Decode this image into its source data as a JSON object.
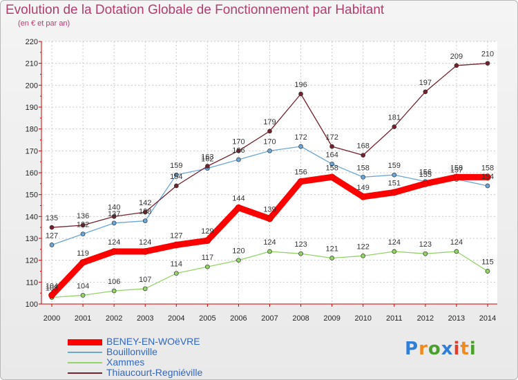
{
  "title": "Evolution de la Dotation Globale de Fonctionnement par Habitant",
  "subtitle": "(en € et par an)",
  "logo": {
    "text": "Proxiti",
    "colors": [
      "#2f7fd8",
      "#f08a1c",
      "#4aa02c",
      "#2f7fd8",
      "#e33b2c",
      "#f08a1c",
      "#4aa02c"
    ]
  },
  "chart_data": {
    "type": "line",
    "title": "Evolution de la Dotation Globale de Fonctionnement par Habitant",
    "subtitle": "(en € et par an)",
    "x": [
      "2000",
      "2001",
      "2002",
      "2003",
      "2004",
      "2005",
      "2006",
      "2007",
      "2008",
      "2009",
      "2010",
      "2011",
      "2012",
      "2013",
      "2014"
    ],
    "ylim": [
      100,
      220
    ],
    "yticks": [
      100,
      110,
      120,
      130,
      140,
      150,
      160,
      170,
      180,
      190,
      200,
      210,
      220
    ],
    "grid": true,
    "legend_position": "bottom-left",
    "series": [
      {
        "name": "BENEY-EN-WOëVRE",
        "color": "#ff0000",
        "width": 9,
        "values": [
          104,
          119,
          124,
          124,
          127,
          129,
          144,
          139,
          156,
          158,
          149,
          151,
          155,
          158,
          158
        ]
      },
      {
        "name": "Bouillonville",
        "color": "#6aa6d6",
        "width": 1.3,
        "values": [
          127,
          132,
          137,
          138,
          159,
          162,
          166,
          170,
          172,
          164,
          158,
          159,
          156,
          157,
          154
        ]
      },
      {
        "name": "Xammes",
        "color": "#93d466",
        "width": 1.3,
        "values": [
          103,
          104,
          106,
          107,
          114,
          117,
          120,
          124,
          123,
          121,
          122,
          124,
          123,
          124,
          115
        ]
      },
      {
        "name": "Thiaucourt-Regniéville",
        "color": "#74212b",
        "width": 1.3,
        "values": [
          135,
          136,
          140,
          142,
          154,
          163,
          170,
          179,
          196,
          172,
          168,
          181,
          197,
          209,
          210
        ]
      }
    ]
  }
}
